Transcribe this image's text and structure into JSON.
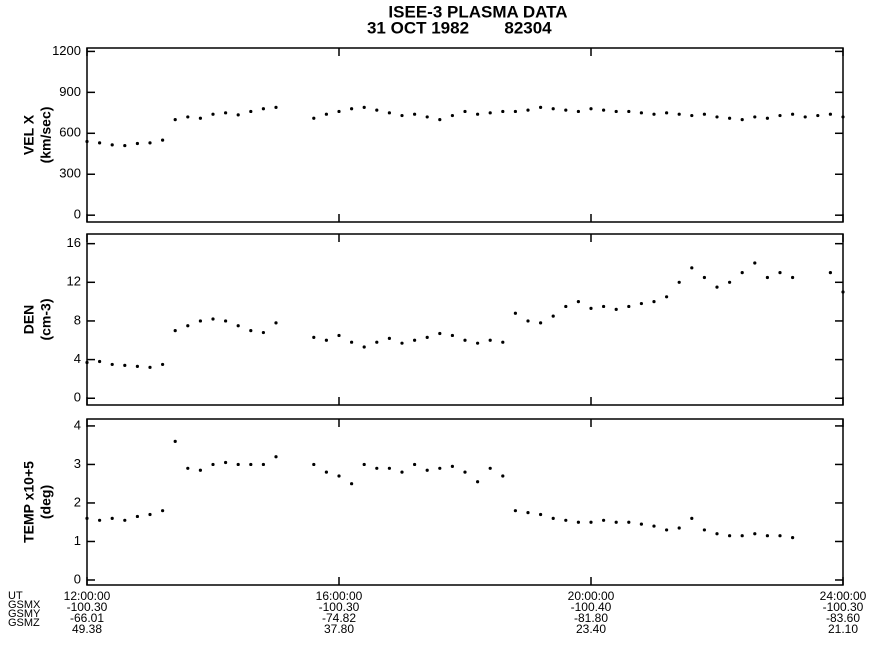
{
  "header": {
    "title": "ISEE-3 PLASMA DATA",
    "date": "31 OCT 1982",
    "code": "82304"
  },
  "chart_data": [
    {
      "type": "scatter",
      "ylabel": "VEL X",
      "yunit": "(km/sec)",
      "color": "#000000",
      "x": [
        12.0,
        12.2,
        12.4,
        12.6,
        12.8,
        13.0,
        13.2,
        13.4,
        13.6,
        13.8,
        14.0,
        14.2,
        14.4,
        14.6,
        14.8,
        15.0,
        15.2,
        15.4,
        15.6,
        15.8,
        16.0,
        16.2,
        16.4,
        16.6,
        16.8,
        17.0,
        17.2,
        17.4,
        17.6,
        17.8,
        18.0,
        18.2,
        18.4,
        18.6,
        18.8,
        19.0,
        19.2,
        19.4,
        19.6,
        19.8,
        20.0,
        20.2,
        20.4,
        20.6,
        20.8,
        21.0,
        21.2,
        21.4,
        21.6,
        21.8,
        22.0,
        22.2,
        22.4,
        22.6,
        22.8,
        23.0,
        23.2,
        23.4,
        23.6,
        23.8,
        24.0
      ],
      "values": [
        540,
        530,
        515,
        510,
        525,
        530,
        550,
        700,
        720,
        710,
        740,
        750,
        735,
        760,
        780,
        790,
        null,
        null,
        710,
        740,
        760,
        780,
        790,
        770,
        750,
        730,
        740,
        720,
        700,
        730,
        760,
        740,
        750,
        760,
        760,
        770,
        790,
        780,
        770,
        760,
        780,
        770,
        760,
        760,
        750,
        740,
        750,
        740,
        730,
        740,
        720,
        710,
        700,
        720,
        710,
        730,
        740,
        720,
        730,
        740,
        720
      ],
      "xlim": [
        12,
        24
      ],
      "ylim": [
        -50,
        1225
      ],
      "yticks": [
        0,
        300,
        600,
        900,
        1200
      ]
    },
    {
      "type": "scatter",
      "ylabel": "DEN",
      "yunit": "(cm-3)",
      "color": "#000000",
      "x": [
        12.0,
        12.2,
        12.4,
        12.6,
        12.8,
        13.0,
        13.2,
        13.4,
        13.6,
        13.8,
        14.0,
        14.2,
        14.4,
        14.6,
        14.8,
        15.0,
        15.2,
        15.4,
        15.6,
        15.8,
        16.0,
        16.2,
        16.4,
        16.6,
        16.8,
        17.0,
        17.2,
        17.4,
        17.6,
        17.8,
        18.0,
        18.2,
        18.4,
        18.6,
        18.8,
        19.0,
        19.2,
        19.4,
        19.6,
        19.8,
        20.0,
        20.2,
        20.4,
        20.6,
        20.8,
        21.0,
        21.2,
        21.4,
        21.6,
        21.8,
        22.0,
        22.2,
        22.4,
        22.6,
        22.8,
        23.0,
        23.2,
        23.4,
        23.6,
        23.8,
        24.0
      ],
      "values": [
        3.7,
        3.8,
        3.5,
        3.4,
        3.3,
        3.2,
        3.5,
        7.0,
        7.5,
        8.0,
        8.2,
        8.0,
        7.5,
        7.0,
        6.8,
        7.8,
        null,
        null,
        6.3,
        6.0,
        6.5,
        5.8,
        5.3,
        5.8,
        6.2,
        5.7,
        6.0,
        6.3,
        6.7,
        6.5,
        6.0,
        5.7,
        6.0,
        5.8,
        8.8,
        8.0,
        7.8,
        8.5,
        9.5,
        10.0,
        9.3,
        9.5,
        9.2,
        9.5,
        9.8,
        10.0,
        10.5,
        12.0,
        13.5,
        12.5,
        11.5,
        12.0,
        13.0,
        14.0,
        12.5,
        13.0,
        12.5,
        null,
        null,
        13.0,
        11.0
      ],
      "xlim": [
        12,
        24
      ],
      "ylim": [
        -0.7,
        17
      ],
      "yticks": [
        0,
        4,
        8,
        12,
        16
      ]
    },
    {
      "type": "scatter",
      "ylabel": "TEMP x10+5",
      "yunit": "(deg)",
      "color": "#000000",
      "x": [
        12.0,
        12.2,
        12.4,
        12.6,
        12.8,
        13.0,
        13.2,
        13.4,
        13.6,
        13.8,
        14.0,
        14.2,
        14.4,
        14.6,
        14.8,
        15.0,
        15.2,
        15.4,
        15.6,
        15.8,
        16.0,
        16.2,
        16.4,
        16.6,
        16.8,
        17.0,
        17.2,
        17.4,
        17.6,
        17.8,
        18.0,
        18.2,
        18.4,
        18.6,
        18.8,
        19.0,
        19.2,
        19.4,
        19.6,
        19.8,
        20.0,
        20.2,
        20.4,
        20.6,
        20.8,
        21.0,
        21.2,
        21.4,
        21.6,
        21.8,
        22.0,
        22.2,
        22.4,
        22.6,
        22.8,
        23.0,
        23.2,
        23.4,
        23.6,
        23.8,
        24.0
      ],
      "values": [
        1.6,
        1.55,
        1.6,
        1.55,
        1.65,
        1.7,
        1.8,
        3.6,
        2.9,
        2.85,
        3.0,
        3.05,
        3.0,
        3.0,
        3.0,
        3.2,
        null,
        null,
        3.0,
        2.8,
        2.7,
        2.5,
        3.0,
        2.9,
        2.9,
        2.8,
        3.0,
        2.85,
        2.9,
        2.95,
        2.8,
        2.55,
        2.9,
        2.7,
        1.8,
        1.75,
        1.7,
        1.6,
        1.55,
        1.5,
        1.5,
        1.55,
        1.5,
        1.5,
        1.45,
        1.4,
        1.3,
        1.35,
        1.6,
        1.3,
        1.2,
        1.15,
        1.15,
        1.2,
        1.15,
        1.15,
        1.1,
        null,
        null,
        null,
        null
      ],
      "xlim": [
        12,
        24
      ],
      "ylim": [
        -0.13,
        4.18
      ],
      "yticks": [
        0,
        1,
        2,
        3,
        4
      ],
      "xticks": [
        {
          "value": 12,
          "label": "12:00:00"
        },
        {
          "value": 16,
          "label": "16:00:00"
        },
        {
          "value": 20,
          "label": "20:00:00"
        },
        {
          "value": 24,
          "label": "24:00:00"
        }
      ]
    }
  ],
  "footer": {
    "row_labels": [
      "UT",
      "GSMX",
      "GSMY",
      "GSMZ"
    ],
    "columns": [
      {
        "gsmx": "-100.30",
        "gsmy": "-66.01",
        "gsmz": "49.38"
      },
      {
        "gsmx": "-100.30",
        "gsmy": "-74.82",
        "gsmz": "37.80"
      },
      {
        "gsmx": "-100.40",
        "gsmy": "-81.80",
        "gsmz": "23.40"
      },
      {
        "gsmx": "-100.30",
        "gsmy": "-83.60",
        "gsmz": "21.10"
      }
    ]
  }
}
